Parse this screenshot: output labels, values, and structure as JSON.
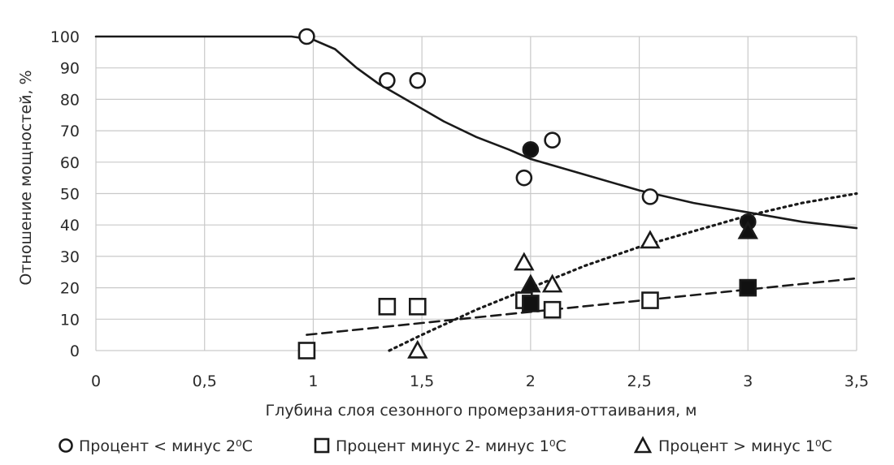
{
  "chart_data": {
    "type": "scatter",
    "xlabel": "Глубина слоя сезонного промерзания-оттаивания, м",
    "ylabel": "Отношение мощностей, %",
    "xlim": [
      0,
      3.5
    ],
    "ylim": [
      0,
      100
    ],
    "x_ticks": [
      {
        "value": 0,
        "label": "0"
      },
      {
        "value": 0.5,
        "label": "0,5"
      },
      {
        "value": 1,
        "label": "1"
      },
      {
        "value": 1.5,
        "label": "1,5"
      },
      {
        "value": 2,
        "label": "2"
      },
      {
        "value": 2.5,
        "label": "2,5"
      },
      {
        "value": 3,
        "label": "3"
      },
      {
        "value": 3.5,
        "label": "3,5"
      }
    ],
    "y_ticks": [
      {
        "value": 0,
        "label": "0"
      },
      {
        "value": 10,
        "label": "10"
      },
      {
        "value": 20,
        "label": "20"
      },
      {
        "value": 30,
        "label": "30"
      },
      {
        "value": 40,
        "label": "40"
      },
      {
        "value": 50,
        "label": "50"
      },
      {
        "value": 60,
        "label": "60"
      },
      {
        "value": 70,
        "label": "70"
      },
      {
        "value": 80,
        "label": "80"
      },
      {
        "value": 90,
        "label": "90"
      },
      {
        "value": 100,
        "label": "100"
      }
    ],
    "grid": true,
    "legend_position": "bottom",
    "series": [
      {
        "name": "Процент < минус  2⁰С",
        "marker": "circle",
        "trend_style": "solid",
        "points": [
          {
            "x": 0.97,
            "y": 100,
            "filled": false
          },
          {
            "x": 1.34,
            "y": 86,
            "filled": false
          },
          {
            "x": 1.48,
            "y": 86,
            "filled": false
          },
          {
            "x": 1.97,
            "y": 55,
            "filled": false
          },
          {
            "x": 2.0,
            "y": 64,
            "filled": true
          },
          {
            "x": 2.1,
            "y": 67,
            "filled": false
          },
          {
            "x": 2.55,
            "y": 49,
            "filled": false
          },
          {
            "x": 3.0,
            "y": 41,
            "filled": true
          }
        ],
        "trend": [
          {
            "x": 0.0,
            "y": 100
          },
          {
            "x": 0.9,
            "y": 100
          },
          {
            "x": 1.0,
            "y": 99
          },
          {
            "x": 1.1,
            "y": 96
          },
          {
            "x": 1.2,
            "y": 90
          },
          {
            "x": 1.3,
            "y": 85
          },
          {
            "x": 1.4,
            "y": 81
          },
          {
            "x": 1.5,
            "y": 77
          },
          {
            "x": 1.6,
            "y": 73
          },
          {
            "x": 1.75,
            "y": 68
          },
          {
            "x": 1.9,
            "y": 64
          },
          {
            "x": 2.0,
            "y": 61
          },
          {
            "x": 2.25,
            "y": 56
          },
          {
            "x": 2.5,
            "y": 51
          },
          {
            "x": 2.75,
            "y": 47
          },
          {
            "x": 3.0,
            "y": 44
          },
          {
            "x": 3.25,
            "y": 41
          },
          {
            "x": 3.5,
            "y": 39
          }
        ]
      },
      {
        "name": "Процент минус 2- минус 1⁰С",
        "marker": "square",
        "trend_style": "dashed",
        "points": [
          {
            "x": 0.97,
            "y": 0,
            "filled": false
          },
          {
            "x": 1.34,
            "y": 14,
            "filled": false
          },
          {
            "x": 1.48,
            "y": 14,
            "filled": false
          },
          {
            "x": 1.97,
            "y": 16,
            "filled": false
          },
          {
            "x": 2.0,
            "y": 15,
            "filled": true
          },
          {
            "x": 2.1,
            "y": 13,
            "filled": false
          },
          {
            "x": 2.55,
            "y": 16,
            "filled": false
          },
          {
            "x": 3.0,
            "y": 20,
            "filled": true
          }
        ],
        "trend": [
          {
            "x": 0.97,
            "y": 5
          },
          {
            "x": 3.5,
            "y": 23
          }
        ]
      },
      {
        "name": "Процент > минус  1⁰С",
        "marker": "triangle",
        "trend_style": "dotted",
        "points": [
          {
            "x": 1.48,
            "y": 0,
            "filled": false
          },
          {
            "x": 1.97,
            "y": 28,
            "filled": false
          },
          {
            "x": 2.0,
            "y": 21,
            "filled": true
          },
          {
            "x": 2.1,
            "y": 21,
            "filled": false
          },
          {
            "x": 2.55,
            "y": 35,
            "filled": false
          },
          {
            "x": 3.0,
            "y": 38,
            "filled": true
          }
        ],
        "trend": [
          {
            "x": 1.35,
            "y": 0
          },
          {
            "x": 1.5,
            "y": 5
          },
          {
            "x": 1.75,
            "y": 13
          },
          {
            "x": 2.0,
            "y": 20
          },
          {
            "x": 2.25,
            "y": 27
          },
          {
            "x": 2.5,
            "y": 33
          },
          {
            "x": 2.75,
            "y": 38
          },
          {
            "x": 3.0,
            "y": 43
          },
          {
            "x": 3.25,
            "y": 47
          },
          {
            "x": 3.5,
            "y": 50
          }
        ]
      }
    ]
  }
}
